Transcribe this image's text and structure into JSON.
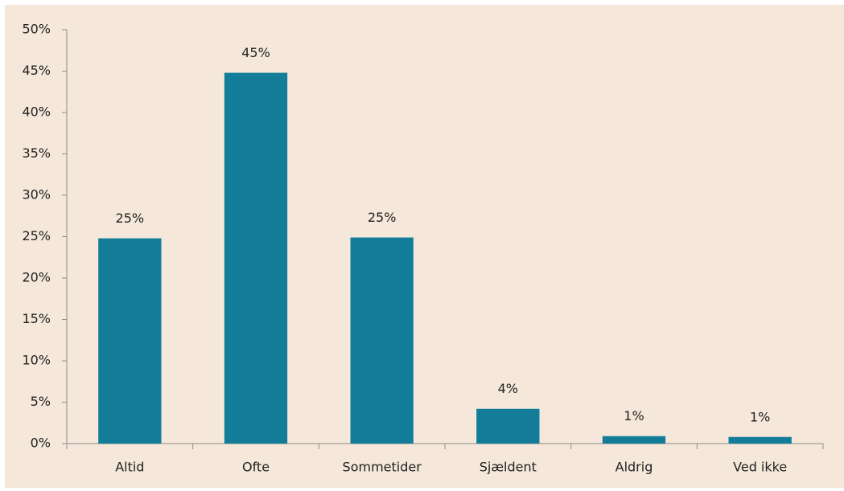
{
  "chart_data": {
    "type": "bar",
    "categories": [
      "Altid",
      "Ofte",
      "Sommetider",
      "Sjældent",
      "Aldrig",
      "Ved ikke"
    ],
    "values": [
      24.8,
      44.8,
      24.9,
      4.2,
      0.9,
      0.8
    ],
    "value_labels": [
      "25%",
      "45%",
      "25%",
      "4%",
      "1%",
      "1%"
    ],
    "color": "#137d99",
    "ylim": [
      0,
      50
    ],
    "yticks": [
      {
        "value": 0,
        "label": "0%"
      },
      {
        "value": 5,
        "label": "5%"
      },
      {
        "value": 10,
        "label": "10%"
      },
      {
        "value": 15,
        "label": "15%"
      },
      {
        "value": 20,
        "label": "20%"
      },
      {
        "value": 25,
        "label": "25%"
      },
      {
        "value": 30,
        "label": "30%"
      },
      {
        "value": 35,
        "label": "35%"
      },
      {
        "value": 40,
        "label": "40%"
      },
      {
        "value": 45,
        "label": "45%"
      },
      {
        "value": 50,
        "label": "50%"
      }
    ],
    "grid": false
  }
}
